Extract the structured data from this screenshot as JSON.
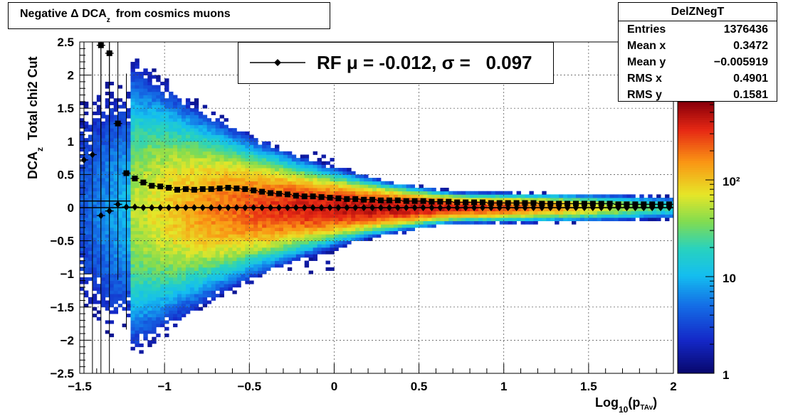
{
  "title": {
    "main": "Negative Δ DCA",
    "sub": "z",
    "rest": "from cosmics muons"
  },
  "stats": {
    "name": "DelZNegT",
    "rows": [
      {
        "label": "Entries",
        "value": "1376436"
      },
      {
        "label": "Mean x",
        "value": "0.3472"
      },
      {
        "label": "Mean y",
        "value": "−0.005919"
      },
      {
        "label": "RMS x",
        "value": "0.4901"
      },
      {
        "label": "RMS y",
        "value": "0.1581"
      }
    ]
  },
  "legend": {
    "entry": "RF μ = -0.012, σ =   0.097"
  },
  "xaxis": {
    "label_main": "Log",
    "label_sub": "10",
    "label_mid": "(p",
    "label_sub2": "TAv",
    "label_end": ")"
  },
  "yaxis": {
    "label_main": "DCA",
    "label_sub": "z",
    "label_rest": "  Total chi2 Cut"
  },
  "colors": {
    "mean_marker": "#000000",
    "sigma_marker": "#000000"
  },
  "chart_data": {
    "type": "heatmap",
    "xlim": [
      -1.5,
      2
    ],
    "ylim": [
      -2.5,
      2.5
    ],
    "x_ticks": [
      "−1.5",
      "−1",
      "−0.5",
      "0",
      "0.5",
      "1",
      "1.5",
      "2"
    ],
    "y_ticks": [
      "−2.5",
      "−2",
      "−1.5",
      "−1",
      "−0.5",
      "0",
      "0.5",
      "1",
      "1.5",
      "2",
      "2.5"
    ],
    "z_log": true,
    "z_ticks": [
      "1",
      "10",
      "10²"
    ],
    "grid": true,
    "legend_placement": "top-center",
    "series": [
      {
        "marker": "square",
        "x": [
          -1.375,
          -1.325,
          -1.275,
          -1.225,
          -1.175,
          -1.125,
          -1.075,
          -1.025,
          -0.975,
          -0.925,
          -0.875,
          -0.825,
          -0.775,
          -0.725,
          -0.675,
          -0.625,
          -0.575,
          -0.525,
          -0.475,
          -0.425,
          -0.375,
          -0.325,
          -0.275,
          -0.225,
          -0.175,
          -0.125,
          -0.075,
          -0.025,
          0.025,
          0.075,
          0.125,
          0.175,
          0.225,
          0.275,
          0.325,
          0.375,
          0.425,
          0.475,
          0.525,
          0.575,
          0.625,
          0.675,
          0.725,
          0.775,
          0.825,
          0.875,
          0.925,
          0.975,
          1.025,
          1.075,
          1.125,
          1.175,
          1.225,
          1.275,
          1.325,
          1.375,
          1.425,
          1.475,
          1.525,
          1.575,
          1.625,
          1.675,
          1.725,
          1.775,
          1.825,
          1.875,
          1.925,
          1.975
        ],
        "y": [
          2.45,
          2.33,
          1.27,
          0.52,
          0.44,
          0.38,
          0.33,
          0.32,
          0.3,
          0.27,
          0.28,
          0.27,
          0.28,
          0.28,
          0.29,
          0.3,
          0.29,
          0.28,
          0.26,
          0.24,
          0.22,
          0.21,
          0.2,
          0.18,
          0.17,
          0.17,
          0.16,
          0.15,
          0.14,
          0.13,
          0.13,
          0.12,
          0.12,
          0.11,
          0.11,
          0.11,
          0.1,
          0.1,
          0.1,
          0.09,
          0.09,
          0.09,
          0.08,
          0.08,
          0.08,
          0.08,
          0.07,
          0.07,
          0.07,
          0.07,
          0.07,
          0.07,
          0.06,
          0.06,
          0.06,
          0.06,
          0.06,
          0.06,
          0.06,
          0.06,
          0.06,
          0.05,
          0.05,
          0.05,
          0.05,
          0.05,
          0.05,
          0.05
        ]
      },
      {
        "marker": "diamond",
        "x": [
          -1.475,
          -1.425,
          -1.375,
          -1.325,
          -1.275,
          -1.225,
          -1.175,
          -1.125,
          -1.075,
          -1.025,
          -0.975,
          -0.925,
          -0.875,
          -0.825,
          -0.775,
          -0.725,
          -0.675,
          -0.625,
          -0.575,
          -0.525,
          -0.475,
          -0.425,
          -0.375,
          -0.325,
          -0.275,
          -0.225,
          -0.175,
          -0.125,
          -0.075,
          -0.025,
          0.025,
          0.075,
          0.125,
          0.175,
          0.225,
          0.275,
          0.325,
          0.375,
          0.425,
          0.475,
          0.525,
          0.575,
          0.625,
          0.675,
          0.725,
          0.775,
          0.825,
          0.875,
          0.925,
          0.975,
          1.025,
          1.075,
          1.125,
          1.175,
          1.225,
          1.275,
          1.325,
          1.375,
          1.425,
          1.475,
          1.525,
          1.575,
          1.625,
          1.675,
          1.725,
          1.775,
          1.825,
          1.875,
          1.925,
          1.975
        ],
        "y": [
          0.72,
          0.8,
          -0.12,
          -0.05,
          0.05,
          0.01,
          0.01,
          0.0,
          0.0,
          0.0,
          0.0,
          0.0,
          0.0,
          0.0,
          0.0,
          0.0,
          0.0,
          0.0,
          0.0,
          0.0,
          0.0,
          0.0,
          0.0,
          0.0,
          0.0,
          0.0,
          0.0,
          0.0,
          0.0,
          0.0,
          0.0,
          0.0,
          0.0,
          0.0,
          0.0,
          0.0,
          0.0,
          0.0,
          0.0,
          0.0,
          0.0,
          0.0,
          0.0,
          0.0,
          0.0,
          0.0,
          0.0,
          0.0,
          0.0,
          0.0,
          0.0,
          0.0,
          0.0,
          0.0,
          0.0,
          0.0,
          0.0,
          0.0,
          0.0,
          0.0,
          0.0,
          0.0,
          0.0,
          0.0,
          0.0,
          0.0,
          0.0,
          0.0,
          0.0,
          0.0
        ]
      }
    ]
  }
}
